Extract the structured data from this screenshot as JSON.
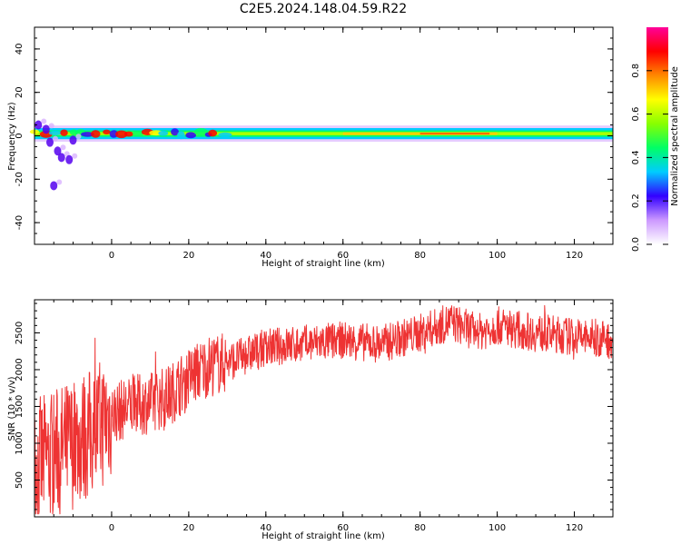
{
  "title": "C2E5.2024.148.04.59.R22",
  "chart_data": [
    {
      "type": "heatmap",
      "title": "C2E5.2024.148.04.59.R22",
      "xlabel": "Height of straight line (km)",
      "ylabel": "Frequency (Hz)",
      "xlim": [
        -20,
        130
      ],
      "ylim": [
        -50,
        50
      ],
      "x_ticks": [
        0,
        20,
        40,
        60,
        80,
        100,
        120
      ],
      "x_tick_labels": [
        "0",
        "20",
        "40",
        "60",
        "80",
        "100",
        "120"
      ],
      "y_ticks": [
        -40,
        -20,
        0,
        20,
        40
      ],
      "y_tick_labels": [
        "-40",
        "-20",
        "0",
        "20",
        "40"
      ],
      "colorbar": {
        "label": "Normalized spectral amplitude",
        "range": [
          0,
          1
        ],
        "ticks": [
          0,
          0.2,
          0.4,
          0.6,
          0.8
        ],
        "tick_labels": [
          "0.0",
          "0.2",
          "0.4",
          "0.6",
          "0.8"
        ],
        "colormap": [
          "#ffffff",
          "#cc99ff",
          "#3300ff",
          "#00ccff",
          "#00ff66",
          "#88ff00",
          "#ffff00",
          "#ff8800",
          "#ff0000",
          "#ff0099"
        ]
      },
      "band_center_hz": 1,
      "band_halfwidth_hz": 3,
      "scatter_blobs": [
        {
          "x": -17,
          "y": 3
        },
        {
          "x": -16,
          "y": -3
        },
        {
          "x": -14,
          "y": -7
        },
        {
          "x": -13,
          "y": -10
        },
        {
          "x": -11,
          "y": -11
        },
        {
          "x": -15,
          "y": -23
        },
        {
          "x": -10,
          "y": -2
        },
        {
          "x": -19,
          "y": 5
        }
      ]
    },
    {
      "type": "line",
      "xlabel": "Height of straight line (km)",
      "ylabel": "SNR (10 * v/v)",
      "xlim": [
        -20,
        130
      ],
      "ylim": [
        0,
        2950
      ],
      "x_ticks": [
        0,
        20,
        40,
        60,
        80,
        100,
        120
      ],
      "x_tick_labels": [
        "0",
        "20",
        "40",
        "60",
        "80",
        "100",
        "120"
      ],
      "y_ticks": [
        500,
        1000,
        1500,
        2000,
        2500
      ],
      "y_tick_labels": [
        "500",
        "1000",
        "1500",
        "2000",
        "2500"
      ],
      "color": "#ee3333",
      "trend": [
        {
          "x": -20,
          "y": 700
        },
        {
          "x": -15,
          "y": 850
        },
        {
          "x": -10,
          "y": 1000
        },
        {
          "x": -5,
          "y": 1150
        },
        {
          "x": 0,
          "y": 1400
        },
        {
          "x": 5,
          "y": 1500
        },
        {
          "x": 10,
          "y": 1550
        },
        {
          "x": 15,
          "y": 1650
        },
        {
          "x": 20,
          "y": 1900
        },
        {
          "x": 25,
          "y": 2050
        },
        {
          "x": 30,
          "y": 2100
        },
        {
          "x": 35,
          "y": 2200
        },
        {
          "x": 40,
          "y": 2300
        },
        {
          "x": 50,
          "y": 2350
        },
        {
          "x": 60,
          "y": 2400
        },
        {
          "x": 70,
          "y": 2350
        },
        {
          "x": 80,
          "y": 2500
        },
        {
          "x": 88,
          "y": 2650
        },
        {
          "x": 95,
          "y": 2500
        },
        {
          "x": 100,
          "y": 2600
        },
        {
          "x": 110,
          "y": 2500
        },
        {
          "x": 120,
          "y": 2450
        },
        {
          "x": 130,
          "y": 2400
        }
      ]
    }
  ]
}
